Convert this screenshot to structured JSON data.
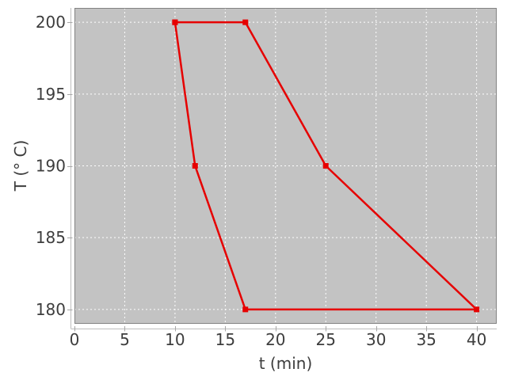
{
  "chart_data": {
    "type": "line",
    "title": "",
    "xlabel": "t (min)",
    "ylabel": "T (° C)",
    "xlim": [
      0,
      42
    ],
    "ylim": [
      179,
      201
    ],
    "x_ticks": [
      0,
      5,
      10,
      15,
      20,
      25,
      30,
      35,
      40
    ],
    "y_ticks": [
      180,
      185,
      190,
      195,
      200
    ],
    "grid": {
      "show": true,
      "color": "#ffffff",
      "style": "dashed"
    },
    "legend": "none",
    "series": [
      {
        "name": "temperature-profile",
        "color": "#e60000",
        "marker": "filled-square",
        "marker_size": 7,
        "line_width": 2.5,
        "closed": true,
        "x": [
          10,
          17,
          25,
          40,
          17,
          12,
          10
        ],
        "y": [
          200,
          200,
          190,
          180,
          180,
          190,
          200
        ]
      }
    ],
    "style": {
      "figure_background": "#ffffff",
      "plot_background": "#c3c3c3",
      "outline_color": "#828282",
      "axis_line_color": "#bdbdbd",
      "tick_mark_color": "#a6a6a6",
      "tick_label_color": "#3d3d3d",
      "axis_label_color": "#3d3d3d",
      "tick_label_size": 20,
      "axis_label_size": 20
    }
  }
}
